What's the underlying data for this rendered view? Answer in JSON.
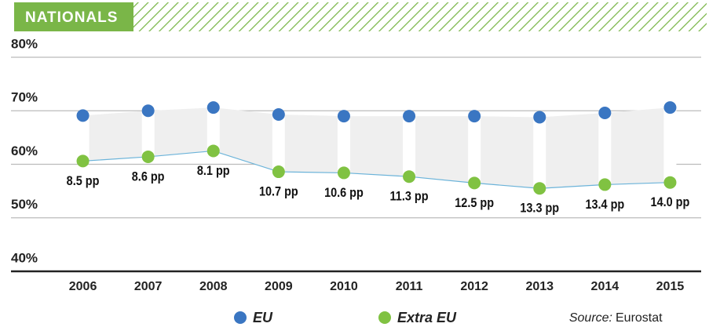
{
  "chart_data": {
    "type": "dot-line",
    "header": "NATIONALS",
    "categories": [
      "2006",
      "2007",
      "2008",
      "2009",
      "2010",
      "2011",
      "2012",
      "2013",
      "2014",
      "2015"
    ],
    "series": [
      {
        "name": "EU",
        "color": "#3a76c2",
        "values": [
          69.1,
          70.0,
          70.6,
          69.3,
          69.0,
          69.0,
          69.0,
          68.8,
          69.6,
          70.6
        ]
      },
      {
        "name": "Extra EU",
        "color": "#80c242",
        "values": [
          60.6,
          61.4,
          62.5,
          58.6,
          58.4,
          57.7,
          56.5,
          55.5,
          56.2,
          56.6
        ]
      }
    ],
    "gap_labels": [
      "8.5 pp",
      "8.6 pp",
      "8.1 pp",
      "10.7 pp",
      "10.6 pp",
      "11.3 pp",
      "12.5 pp",
      "13.3 pp",
      "13.4 pp",
      "14.0 pp"
    ],
    "ylim": [
      40,
      80
    ],
    "yticks": [
      {
        "value": 40,
        "label": "40%"
      },
      {
        "value": 50,
        "label": "50%"
      },
      {
        "value": 60,
        "label": "60%"
      },
      {
        "value": 70,
        "label": "70%"
      },
      {
        "value": 80,
        "label": "80%"
      }
    ],
    "grid": true,
    "source_prefix": "Source:",
    "source": "Eurostat"
  }
}
